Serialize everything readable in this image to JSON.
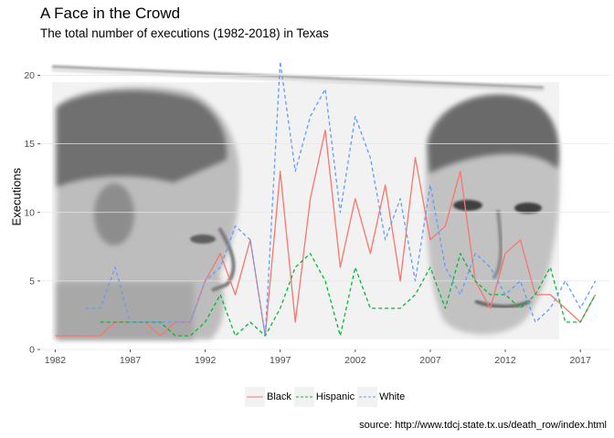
{
  "chart_data": {
    "type": "line",
    "title": "A Face in the Crowd",
    "subtitle": "The total number of executions (1982-2018) in Texas",
    "ylabel": "Executions",
    "xlabel": "",
    "caption": "source: http://www.tdcj.state.tx.us/death_row/index.html",
    "xlim": [
      1981,
      2019
    ],
    "ylim": [
      0,
      21.5
    ],
    "x_ticks": [
      1982,
      1987,
      1992,
      1997,
      2002,
      2007,
      2012,
      2017
    ],
    "y_ticks": [
      0,
      5,
      10,
      15,
      20
    ],
    "legend_position": "bottom",
    "background_image": "two-mugshot-faces-photo",
    "series": [
      {
        "name": "Black",
        "color": "#F8766D",
        "dash": "solid",
        "x": [
          1982,
          1983,
          1984,
          1985,
          1986,
          1987,
          1988,
          1989,
          1990,
          1991,
          1992,
          1993,
          1994,
          1995,
          1996,
          1997,
          1998,
          1999,
          2000,
          2001,
          2002,
          2003,
          2004,
          2005,
          2006,
          2007,
          2008,
          2009,
          2010,
          2011,
          2012,
          2013,
          2014,
          2015,
          2016,
          2017,
          2018
        ],
        "values": [
          1,
          1,
          1,
          1,
          2,
          2,
          2,
          1,
          2,
          2,
          5,
          7,
          4,
          8,
          1,
          13,
          2,
          11,
          16,
          6,
          11,
          7,
          12,
          5,
          14,
          8,
          9,
          13,
          5,
          3,
          7,
          8,
          4,
          4,
          3,
          2,
          4
        ]
      },
      {
        "name": "Hispanic",
        "color": "#00BA38",
        "dash": "dashed",
        "x": [
          1985,
          1986,
          1987,
          1988,
          1989,
          1990,
          1991,
          1992,
          1993,
          1994,
          1995,
          1996,
          1997,
          1998,
          1999,
          2000,
          2001,
          2002,
          2003,
          2004,
          2005,
          2006,
          2007,
          2008,
          2009,
          2010,
          2011,
          2012,
          2013,
          2014,
          2015,
          2016,
          2017,
          2018
        ],
        "values": [
          2,
          2,
          2,
          2,
          2,
          1,
          1,
          2,
          4,
          1,
          2,
          1,
          3,
          6,
          7,
          5,
          1,
          6,
          3,
          3,
          3,
          4,
          6,
          3,
          7,
          5,
          4,
          4,
          3,
          4,
          6,
          2,
          2,
          4
        ]
      },
      {
        "name": "White",
        "color": "#619CFF",
        "dash": "dashed",
        "x": [
          1984,
          1985,
          1986,
          1987,
          1988,
          1989,
          1990,
          1991,
          1992,
          1993,
          1994,
          1995,
          1996,
          1997,
          1998,
          1999,
          2000,
          2001,
          2002,
          2003,
          2004,
          2005,
          2006,
          2007,
          2008,
          2009,
          2010,
          2011,
          2012,
          2013,
          2014,
          2015,
          2016,
          2017,
          2018
        ],
        "values": [
          3,
          3,
          6,
          2,
          2,
          2,
          2,
          2,
          5,
          6,
          9,
          8,
          1,
          21,
          13,
          17,
          19,
          10,
          17,
          14,
          8,
          11,
          5,
          12,
          6,
          4,
          7,
          6,
          4,
          5,
          2,
          3,
          5,
          3,
          5
        ]
      }
    ]
  }
}
